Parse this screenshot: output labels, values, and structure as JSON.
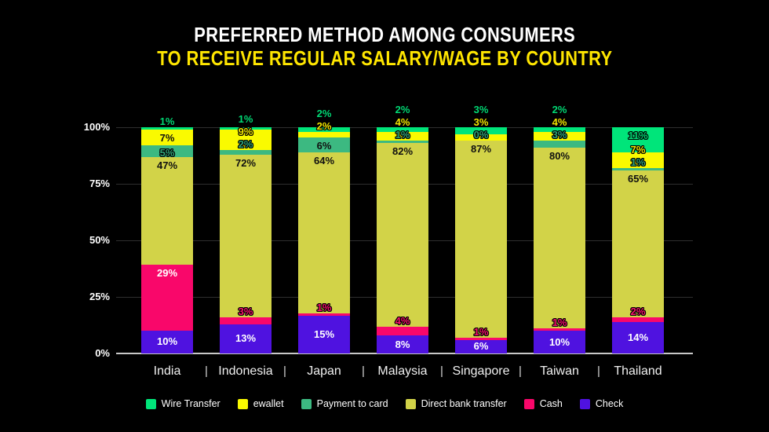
{
  "title": {
    "line1": "PREFERRED METHOD AMONG CONSUMERS",
    "line2": "TO RECEIVE REGULAR SALARY/WAGE BY COUNTRY"
  },
  "colors": {
    "background": "#000000",
    "title": "#ffffff",
    "subtitle": "#ffe600",
    "gridline": "#2e2e2e",
    "baseline": "#c8c8c8",
    "axis_text": "#ffffff"
  },
  "y_axis": {
    "ticks": [
      "100%",
      "75%",
      "50%",
      "25%",
      "0%"
    ]
  },
  "x_axis": {
    "separator": "|"
  },
  "chart_data": {
    "type": "bar",
    "stacked": true,
    "stacked_normalized": true,
    "title": "PREFERRED METHOD AMONG CONSUMERS TO RECEIVE REGULAR SALARY/WAGE BY COUNTRY",
    "xlabel": "",
    "ylabel": "",
    "ylim": [
      0,
      100
    ],
    "grid": true,
    "legend_position": "bottom",
    "categories": [
      "India",
      "Indonesia",
      "Japan",
      "Malaysia",
      "Singapore",
      "Taiwan",
      "Thailand"
    ],
    "series": [
      {
        "name": "Wire Transfer",
        "color": "#00e57a",
        "label_color": "#00d974",
        "values": [
          1,
          1,
          2,
          2,
          3,
          2,
          11
        ]
      },
      {
        "name": "ewallet",
        "color": "#fafa00",
        "label_color": "#f2e600",
        "values": [
          7,
          9,
          2,
          4,
          3,
          4,
          7
        ]
      },
      {
        "name": "Payment to card",
        "color": "#3cb981",
        "label_color": "#2fa478",
        "values": [
          5,
          2,
          6,
          1,
          0,
          3,
          1
        ]
      },
      {
        "name": "Direct bank transfer",
        "color": "#d2d348",
        "label_color": "#101010",
        "values": [
          47,
          72,
          64,
          82,
          87,
          80,
          65
        ]
      },
      {
        "name": "Cash",
        "color": "#f9076a",
        "label_color": "#fa0f6d",
        "values": [
          29,
          3,
          1,
          4,
          1,
          1,
          2
        ]
      },
      {
        "name": "Check",
        "color": "#4f12e0",
        "label_color": "#ffffff",
        "values": [
          10,
          13,
          15,
          8,
          6,
          10,
          14
        ]
      }
    ],
    "data_label_suffix": "%"
  },
  "legend_items": [
    "Wire Transfer",
    "ewallet",
    "Payment to card",
    "Direct bank transfer",
    "Cash",
    "Check"
  ]
}
